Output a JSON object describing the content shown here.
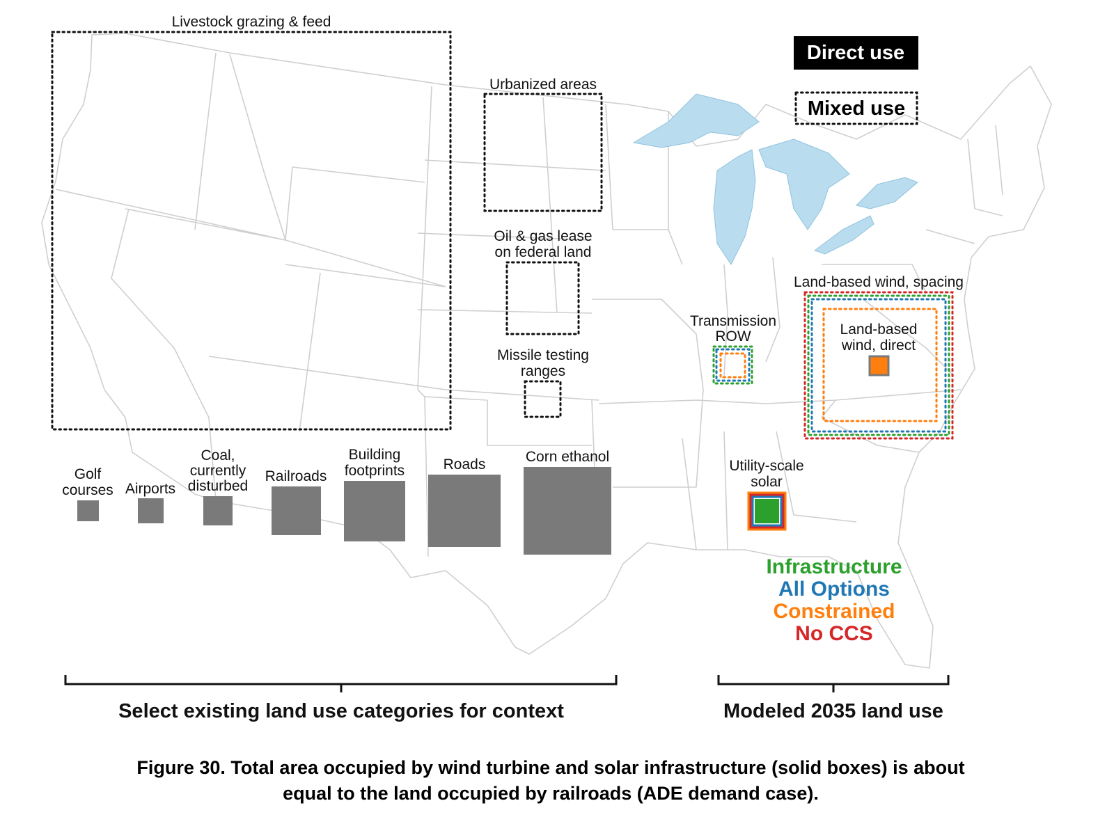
{
  "legend": {
    "direct_use": "Direct use",
    "mixed_use": "Mixed use"
  },
  "mixed_labels": {
    "livestock": "Livestock grazing & feed",
    "urbanized": "Urbanized areas",
    "oilgas_line1": "Oil & gas lease",
    "oilgas_line2": "on federal land",
    "missile_line1": "Missile testing",
    "missile_line2": "ranges",
    "wind_spacing": "Land-based wind, spacing",
    "transmission_line1": "Transmission",
    "transmission_line2": "ROW"
  },
  "direct_labels": {
    "golf_line1": "Golf",
    "golf_line2": "courses",
    "airports": "Airports",
    "coal_line1": "Coal,",
    "coal_line2": "currently",
    "coal_line3": "disturbed",
    "railroads": "Railroads",
    "building_line1": "Building",
    "building_line2": "footprints",
    "roads": "Roads",
    "corn": "Corn ethanol",
    "wind_direct_line1": "Land-based",
    "wind_direct_line2": "wind, direct",
    "solar_line1": "Utility-scale",
    "solar_line2": "solar"
  },
  "scenarios": [
    {
      "name": "Infrastructure",
      "color": "#2ca02c"
    },
    {
      "name": "All Options",
      "color": "#1f77b4"
    },
    {
      "name": "Constrained",
      "color": "#ff7f0e"
    },
    {
      "name": "No CCS",
      "color": "#d62728"
    }
  ],
  "brackets": {
    "existing": "Select existing land use categories for context",
    "modeled": "Modeled 2035 land use"
  },
  "caption": {
    "line1": "Figure 30. Total area occupied by wind turbine and solar infrastructure (solid boxes) is about",
    "line2": "equal to the land occupied by railroads (ADE demand case)."
  },
  "colors": {
    "direct_box": "#7a7a7a",
    "lakes": "#b9dcee",
    "state_lines": "#cfcfcf",
    "solar_fill": "#2ca02c",
    "wind_direct_fill": "#ff7f0e"
  },
  "icons": {
    "map": "us-states-outline-icon"
  }
}
